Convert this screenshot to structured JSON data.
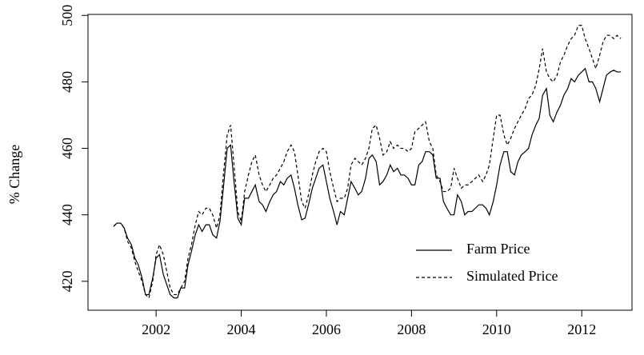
{
  "chart_data": {
    "type": "line",
    "y_label": "% Change",
    "x": [
      2001,
      2001.08,
      2001.17,
      2001.25,
      2001.33,
      2001.42,
      2001.5,
      2001.58,
      2001.67,
      2001.75,
      2001.83,
      2001.92,
      2002,
      2002.08,
      2002.17,
      2002.25,
      2002.33,
      2002.42,
      2002.5,
      2002.58,
      2002.67,
      2002.75,
      2002.83,
      2002.92,
      2003,
      2003.08,
      2003.17,
      2003.25,
      2003.33,
      2003.42,
      2003.5,
      2003.58,
      2003.67,
      2003.75,
      2003.83,
      2003.92,
      2004,
      2004.08,
      2004.17,
      2004.25,
      2004.33,
      2004.42,
      2004.5,
      2004.58,
      2004.67,
      2004.75,
      2004.83,
      2004.92,
      2005,
      2005.08,
      2005.17,
      2005.25,
      2005.33,
      2005.42,
      2005.5,
      2005.58,
      2005.67,
      2005.75,
      2005.83,
      2005.92,
      2006,
      2006.08,
      2006.17,
      2006.25,
      2006.33,
      2006.42,
      2006.5,
      2006.58,
      2006.67,
      2006.75,
      2006.83,
      2006.92,
      2007,
      2007.08,
      2007.17,
      2007.25,
      2007.33,
      2007.42,
      2007.5,
      2007.58,
      2007.67,
      2007.75,
      2007.83,
      2007.92,
      2008,
      2008.08,
      2008.17,
      2008.25,
      2008.33,
      2008.42,
      2008.5,
      2008.58,
      2008.67,
      2008.75,
      2008.83,
      2008.92,
      2009,
      2009.08,
      2009.17,
      2009.25,
      2009.33,
      2009.42,
      2009.5,
      2009.58,
      2009.67,
      2009.75,
      2009.83,
      2009.92,
      2010,
      2010.08,
      2010.17,
      2010.25,
      2010.33,
      2010.42,
      2010.5,
      2010.58,
      2010.67,
      2010.75,
      2010.83,
      2010.92,
      2011,
      2011.08,
      2011.17,
      2011.25,
      2011.33,
      2011.42,
      2011.5,
      2011.58,
      2011.67,
      2011.75,
      2011.83,
      2011.92,
      2012,
      2012.08,
      2012.17,
      2012.25,
      2012.33,
      2012.42,
      2012.5,
      2012.58,
      2012.67,
      2012.75,
      2012.83,
      2012.92
    ],
    "series": [
      {
        "name": "Farm Price",
        "color": "#000000",
        "style": "solid",
        "values": [
          436.5,
          437.5,
          437.5,
          436,
          433,
          431,
          427,
          425,
          421,
          416,
          416,
          421,
          427,
          428,
          422,
          419,
          416,
          415,
          415,
          418,
          418,
          425,
          429,
          434,
          437,
          435,
          437,
          437,
          434,
          433,
          438,
          448,
          460,
          461,
          450,
          439,
          437,
          445,
          445,
          447,
          449,
          444,
          443,
          441,
          444,
          446,
          447,
          450,
          449,
          451,
          452,
          448,
          443,
          438.5,
          439,
          443,
          448,
          451,
          454,
          455,
          450,
          445,
          441,
          437,
          441,
          440,
          445,
          450,
          448,
          446,
          447,
          451,
          457,
          458,
          456,
          449,
          450,
          452,
          455,
          453,
          454,
          452,
          452,
          451,
          449,
          449,
          455,
          456,
          459,
          459,
          458,
          451,
          451,
          444,
          442,
          440,
          440,
          446,
          444,
          440,
          441,
          441,
          442,
          443,
          443,
          442,
          440,
          444,
          449,
          455,
          459,
          459,
          453,
          452,
          456,
          458,
          459,
          460,
          464,
          467,
          469,
          476,
          478,
          470,
          468,
          471,
          473,
          476,
          478,
          481,
          480,
          482,
          483,
          484,
          480,
          480,
          478,
          474,
          478,
          482,
          483,
          483.5,
          483,
          483
        ]
      },
      {
        "name": "Simulated Price",
        "color": "#000000",
        "style": "dashed",
        "values": [
          436.5,
          437.5,
          437.5,
          436,
          432,
          430,
          426,
          423,
          420,
          416,
          415,
          420,
          428,
          431,
          428,
          423,
          418,
          416,
          416,
          418,
          420,
          427,
          431,
          437,
          441,
          440,
          442,
          442,
          440,
          436,
          440,
          452,
          464,
          467,
          455,
          441,
          438,
          447,
          452,
          456,
          458,
          452,
          449,
          447,
          449,
          451,
          452,
          454,
          456,
          459,
          461,
          459,
          452,
          444,
          442,
          446,
          452,
          456,
          459,
          460,
          459,
          453,
          448,
          444,
          445,
          445,
          448,
          455,
          457,
          456,
          455,
          457,
          460,
          466,
          467,
          463,
          458,
          459,
          462,
          460,
          461,
          460,
          460,
          459,
          460,
          465,
          466,
          467,
          468,
          462,
          460,
          452,
          450,
          447,
          447,
          448,
          454,
          451,
          448,
          449,
          449,
          450,
          451,
          452,
          450,
          452,
          455,
          463,
          470,
          470,
          464,
          461,
          463,
          466,
          468,
          470,
          472,
          475,
          476,
          479,
          484,
          490,
          483,
          481,
          480,
          482,
          486,
          488,
          491,
          493,
          494,
          497,
          497,
          493,
          490,
          487,
          484,
          488,
          492,
          494,
          494,
          493,
          494,
          493
        ]
      }
    ],
    "xlim": [
      2000.4,
      2013.18
    ],
    "xticks": [
      2002,
      2004,
      2006,
      2008,
      2010,
      2012
    ],
    "ylim": [
      411.3,
      500.3
    ],
    "yticks": [
      420,
      440,
      460,
      480,
      500
    ],
    "grid": false,
    "legend": "bottom-right"
  }
}
